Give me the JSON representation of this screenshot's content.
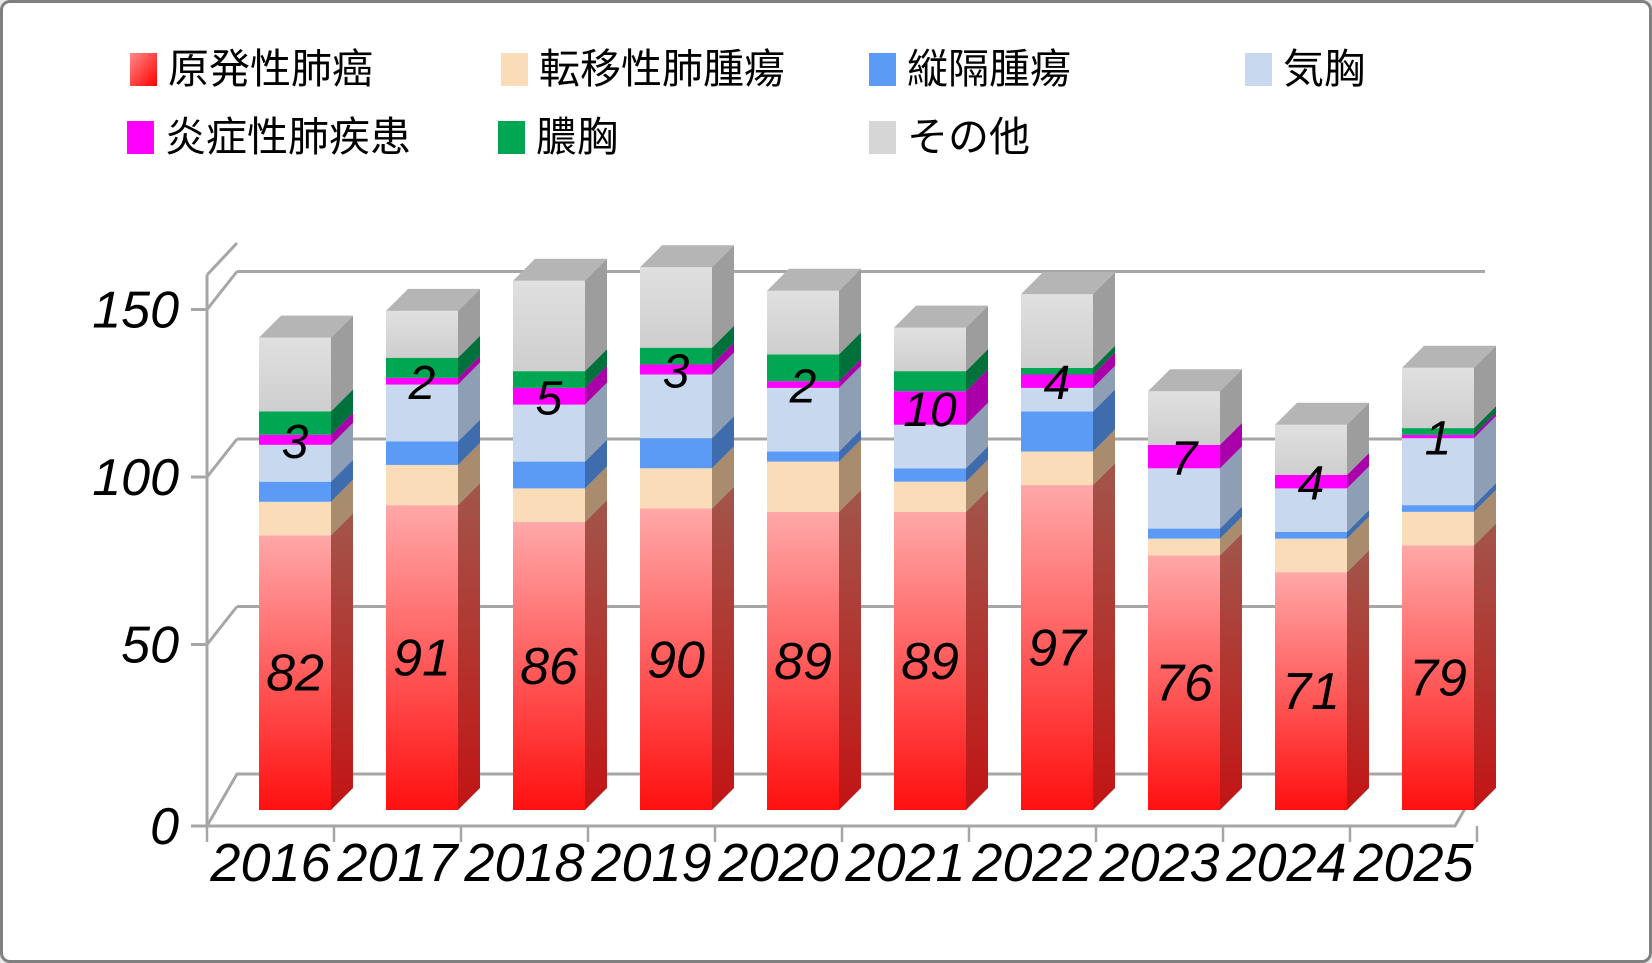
{
  "chart_data": {
    "type": "bar",
    "stacked": true,
    "effect_3d": true,
    "title": "",
    "xlabel": "",
    "ylabel": "",
    "categories": [
      "2016",
      "2017",
      "2018",
      "2019",
      "2020",
      "2021",
      "2022",
      "2023",
      "2024",
      "2025"
    ],
    "series": [
      {
        "key": "primary-lung-cancer",
        "name": "原発性肺癌",
        "color": "#ff1010",
        "color_light": "#ffa8a8",
        "side_color": "#b24a40",
        "values": [
          82,
          91,
          86,
          90,
          89,
          89,
          97,
          76,
          71,
          79
        ],
        "labeled": true
      },
      {
        "key": "metastatic-lung-tumor",
        "name": "転移性肺腫瘍",
        "color": "#fbdcb9",
        "side_color": "#a98c6e",
        "values": [
          10,
          12,
          10,
          12,
          15,
          9,
          10,
          5,
          10,
          10
        ],
        "labeled": false
      },
      {
        "key": "mediastinal-tumor",
        "name": "縦隔腫瘍",
        "color": "#5b9bf5",
        "side_color": "#3f6cac",
        "values": [
          6,
          7,
          8,
          9,
          3,
          4,
          12,
          3,
          2,
          2
        ],
        "labeled": false
      },
      {
        "key": "pneumothorax",
        "name": "気胸",
        "color": "#c8d8ef",
        "side_color": "#8e9eb5",
        "values": [
          11,
          17,
          17,
          19,
          19,
          13,
          7,
          18,
          13,
          20
        ],
        "labeled": false
      },
      {
        "key": "inflammatory-lung-disease",
        "name": "炎症性肺疾患",
        "color": "#ff00ff",
        "side_color": "#aa00aa",
        "values": [
          3,
          2,
          5,
          3,
          2,
          10,
          4,
          7,
          4,
          1
        ],
        "labeled": true
      },
      {
        "key": "empyema",
        "name": "膿胸",
        "color": "#00a651",
        "side_color": "#00713a",
        "values": [
          7,
          6,
          5,
          5,
          8,
          6,
          2,
          0,
          0,
          2
        ],
        "labeled": false
      },
      {
        "key": "other",
        "name": "その他",
        "color": "#d6d6d6",
        "side_color": "#9d9d9d",
        "top_color": "#b5b5b5",
        "values": [
          22,
          14,
          27,
          24,
          19,
          13,
          22,
          16,
          15,
          18
        ],
        "labeled": false
      }
    ],
    "y_axis": {
      "ticks": [
        0,
        50,
        100,
        150
      ],
      "tick_labels": [
        "0",
        "50",
        "100",
        "150"
      ],
      "max": 150
    },
    "legend_position": "top",
    "grid": true,
    "axis_color": "#a6a6a6"
  }
}
